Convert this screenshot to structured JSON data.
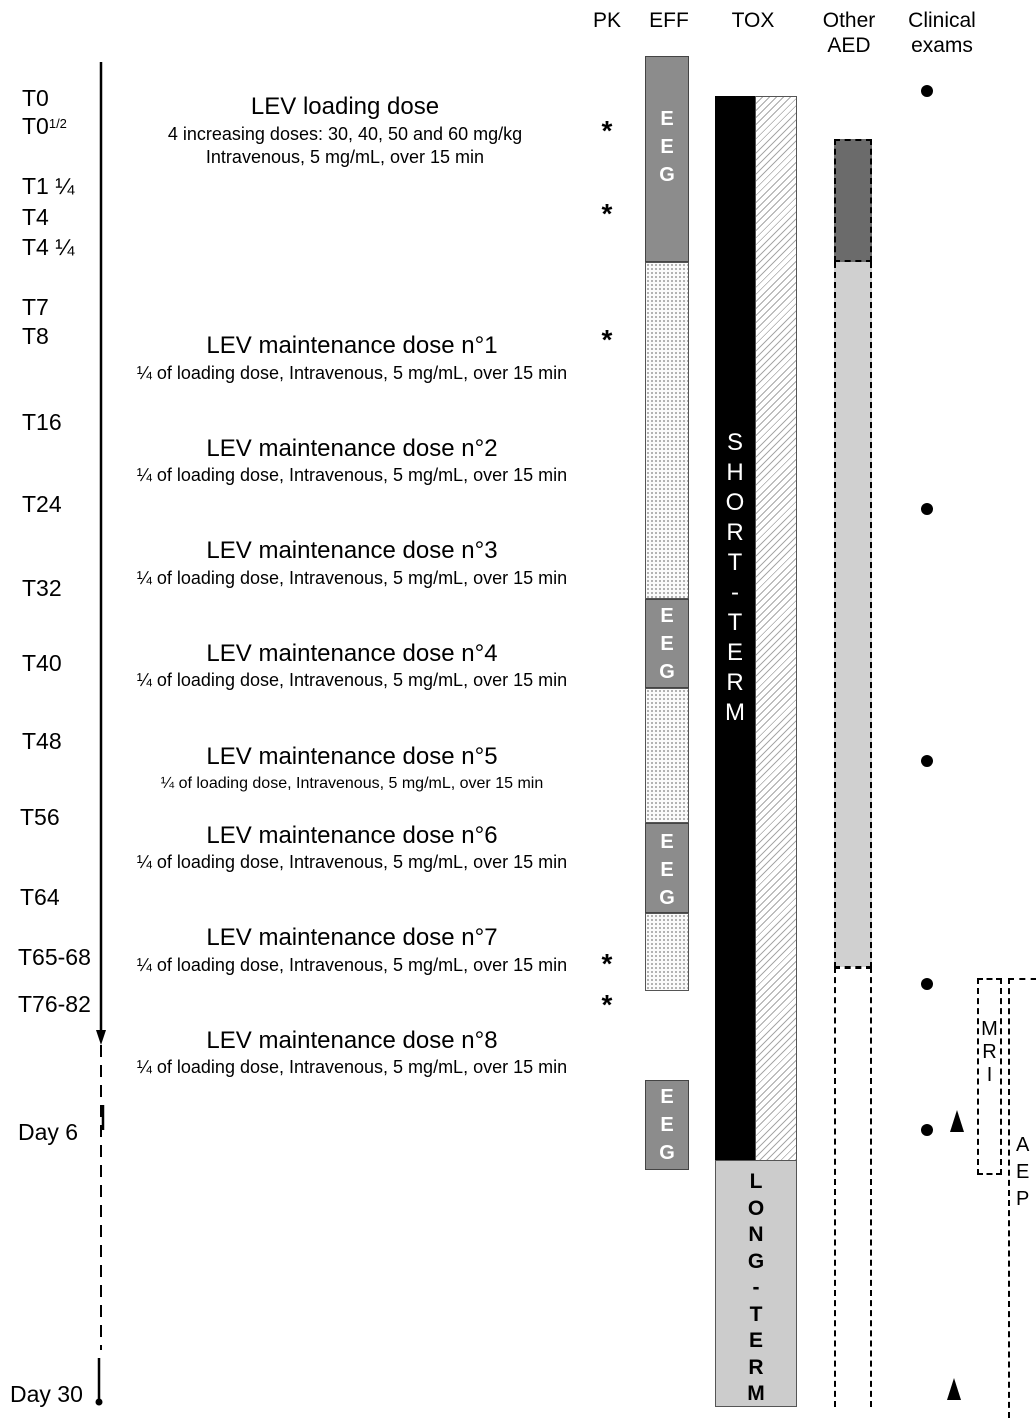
{
  "columns": {
    "pk": "PK",
    "eff": "EFF",
    "tox": "TOX",
    "other_aed": [
      "Other",
      "AED"
    ],
    "clinical": [
      "Clinical",
      "exams"
    ]
  },
  "timepoints": {
    "t0": "T0",
    "t0half_base": "T0",
    "t0half_sup": "1/2",
    "t1q": "T1 ¼",
    "t4": "T4",
    "t4q": "T4 ¼",
    "t7": "T7",
    "t8": "T8",
    "t16": "T16",
    "t24": "T24",
    "t32": "T32",
    "t40": "T40",
    "t48": "T48",
    "t56": "T56",
    "t64": "T64",
    "t65": "T65-68",
    "t76": "T76-82",
    "day6": "Day 6",
    "day30": "Day 30"
  },
  "loading": {
    "title": "LEV loading dose",
    "line1": "4 increasing doses: 30, 40, 50 and 60 mg/kg",
    "line2": "Intravenous, 5 mg/mL, over 15 min"
  },
  "maintenance": [
    {
      "title": "LEV maintenance dose n°1",
      "sub": "¼ of loading dose, Intravenous, 5 mg/mL, over 15 min"
    },
    {
      "title": "LEV maintenance dose n°2",
      "sub": "¼ of loading dose, Intravenous, 5 mg/mL, over 15 min"
    },
    {
      "title": "LEV maintenance dose n°3",
      "sub": "¼ of loading dose, Intravenous, 5 mg/mL, over 15 min"
    },
    {
      "title": "LEV maintenance dose n°4",
      "sub": "¼ of loading dose, Intravenous, 5 mg/mL, over 15 min"
    },
    {
      "title": "LEV maintenance dose n°5",
      "sub": "¼ of loading dose, Intravenous, 5 mg/mL, over 15 min"
    },
    {
      "title": "LEV maintenance dose n°6",
      "sub": "¼ of loading dose, Intravenous, 5 mg/mL, over 15 min"
    },
    {
      "title": "LEV maintenance dose n°7",
      "sub": "¼ of loading dose, Intravenous, 5 mg/mL, over 15 min"
    },
    {
      "title": "LEV maintenance dose n°8",
      "sub": "¼ of loading dose, Intravenous, 5 mg/mL, over 15 min"
    }
  ],
  "pk_marker": "*",
  "eeg_letters": [
    "E",
    "E",
    "G"
  ],
  "tox": {
    "short": [
      "S",
      "H",
      "O",
      "R",
      "T",
      "-",
      "T",
      "E",
      "R",
      "M"
    ],
    "long": [
      "L",
      "O",
      "N",
      "G",
      "-",
      "T",
      "E",
      "R",
      "M"
    ]
  },
  "mri": [
    "M",
    "R",
    "I"
  ],
  "aep": [
    "A",
    "E",
    "P"
  ],
  "colors": {
    "eeg": "#8c8c8c",
    "short_term": "#000000",
    "long_term": "#cccccc",
    "other_aed_dark": "#6b6b6b",
    "other_aed_light": "#d0d0d0"
  }
}
